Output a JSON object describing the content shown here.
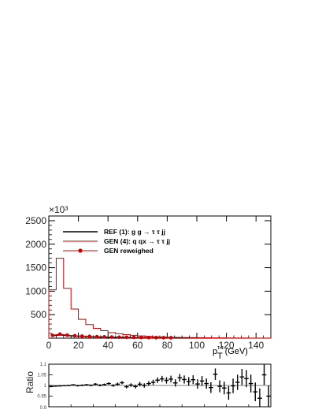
{
  "chart_data": [
    {
      "type": "histogram",
      "x_bin_width": 5,
      "xlim": [
        0,
        150
      ],
      "ylim": [
        0,
        2600
      ],
      "x_ticks": [
        0,
        20,
        40,
        60,
        80,
        100,
        120,
        140
      ],
      "x_tick_labels": [
        "0",
        "20",
        "40",
        "60",
        "80",
        "100",
        "120",
        "140"
      ],
      "y_ticks": [
        500,
        1000,
        1500,
        2000,
        2500
      ],
      "y_tick_labels": [
        "500",
        "1000",
        "1500",
        "2000",
        "2500"
      ],
      "y_exponent_label": "×10³",
      "xlabel_main": "p",
      "xlabel_sub": "T",
      "xlabel_sup": "τ τ",
      "xlabel_unit": "(GeV)",
      "series": [
        {
          "name": "REF (1): g g → τ τ jj",
          "color": "#000000",
          "style": "line",
          "x": [
            2.5,
            7.5,
            12.5,
            17.5,
            22.5,
            27.5,
            32.5,
            37.5,
            42.5,
            47.5,
            52.5,
            57.5,
            62.5,
            67.5,
            72.5,
            77.5,
            82.5
          ],
          "values": [
            50,
            70,
            55,
            45,
            38,
            32,
            27,
            23,
            20,
            17,
            15,
            13,
            11,
            10,
            9,
            8,
            7
          ]
        },
        {
          "name": "GEN (4): q qx → τ τ jj",
          "color": "#cc0000",
          "style": "histogram",
          "bin_edges": [
            0,
            5,
            10,
            15,
            20,
            25,
            30,
            35,
            40,
            45,
            50,
            55,
            60,
            65,
            70,
            75,
            80,
            85,
            90,
            95,
            100,
            105,
            110,
            115,
            120,
            125,
            130,
            135,
            140,
            145,
            150
          ],
          "values": [
            1030,
            1700,
            1060,
            620,
            400,
            290,
            210,
            160,
            120,
            95,
            75,
            60,
            48,
            40,
            32,
            26,
            21,
            17,
            14,
            12,
            10,
            8,
            7,
            6,
            5,
            4,
            4,
            3,
            3,
            2
          ]
        },
        {
          "name": "GEN reweighed",
          "color": "#cc0000",
          "style": "markers",
          "x": [
            2.5,
            7.5,
            12.5,
            17.5,
            22.5,
            27.5,
            32.5,
            37.5,
            42.5,
            47.5,
            52.5,
            57.5,
            62.5,
            67.5,
            72.5,
            77.5,
            82.5
          ],
          "values": [
            60,
            85,
            65,
            52,
            44,
            38,
            32,
            28,
            24,
            21,
            18,
            16,
            14,
            12,
            11,
            10,
            9
          ]
        }
      ],
      "legend_position": "top-left"
    },
    {
      "type": "scatter",
      "ylabel": "Ratio",
      "ylim": [
        0.9,
        1.1
      ],
      "y_ticks": [
        0.95,
        1.0,
        1.05,
        1.1
      ],
      "y_tick_labels": [
        "0.95",
        "1",
        "1.05",
        "1.1"
      ],
      "y_bottom_label": "0.9",
      "x": [
        1,
        3,
        5,
        7,
        9,
        11,
        13,
        15,
        17,
        19,
        21,
        23,
        25,
        27,
        29,
        31,
        33,
        35,
        37,
        39,
        41,
        43,
        45,
        47,
        49,
        51,
        53,
        55,
        57,
        59,
        61,
        63,
        65,
        67,
        69,
        71,
        73,
        75,
        77,
        79,
        81,
        83,
        85,
        87,
        89,
        91,
        93,
        95,
        97,
        99
      ],
      "values": [
        0.995,
        0.997,
        0.998,
        0.999,
        1.0,
        1.003,
        0.999,
        1.001,
        1.003,
        1.001,
        1.006,
        1.001,
        1.004,
        1.009,
        1.0,
        1.006,
        1.013,
        0.994,
        1.002,
        0.995,
        1.006,
        1.0,
        1.009,
        1.015,
        1.025,
        1.031,
        1.024,
        1.03,
        1.012,
        1.036,
        1.028,
        1.019,
        1.027,
        1.007,
        1.021,
        1.009,
        0.99,
        1.053,
        0.996,
        0.988,
        0.965,
        0.998,
        1.015,
        1.04,
        1.032,
        1.009,
        0.97,
        0.94,
        1.05,
        0.95
      ],
      "errors": [
        0.003,
        0.003,
        0.003,
        0.003,
        0.003,
        0.003,
        0.004,
        0.004,
        0.004,
        0.004,
        0.005,
        0.005,
        0.005,
        0.006,
        0.006,
        0.007,
        0.007,
        0.008,
        0.008,
        0.009,
        0.01,
        0.01,
        0.011,
        0.012,
        0.013,
        0.014,
        0.015,
        0.016,
        0.017,
        0.018,
        0.019,
        0.02,
        0.021,
        0.022,
        0.023,
        0.024,
        0.025,
        0.027,
        0.028,
        0.03,
        0.032,
        0.034,
        0.036,
        0.038,
        0.04,
        0.042,
        0.044,
        0.046,
        0.048,
        0.05
      ],
      "ref_line": 1.0
    }
  ]
}
